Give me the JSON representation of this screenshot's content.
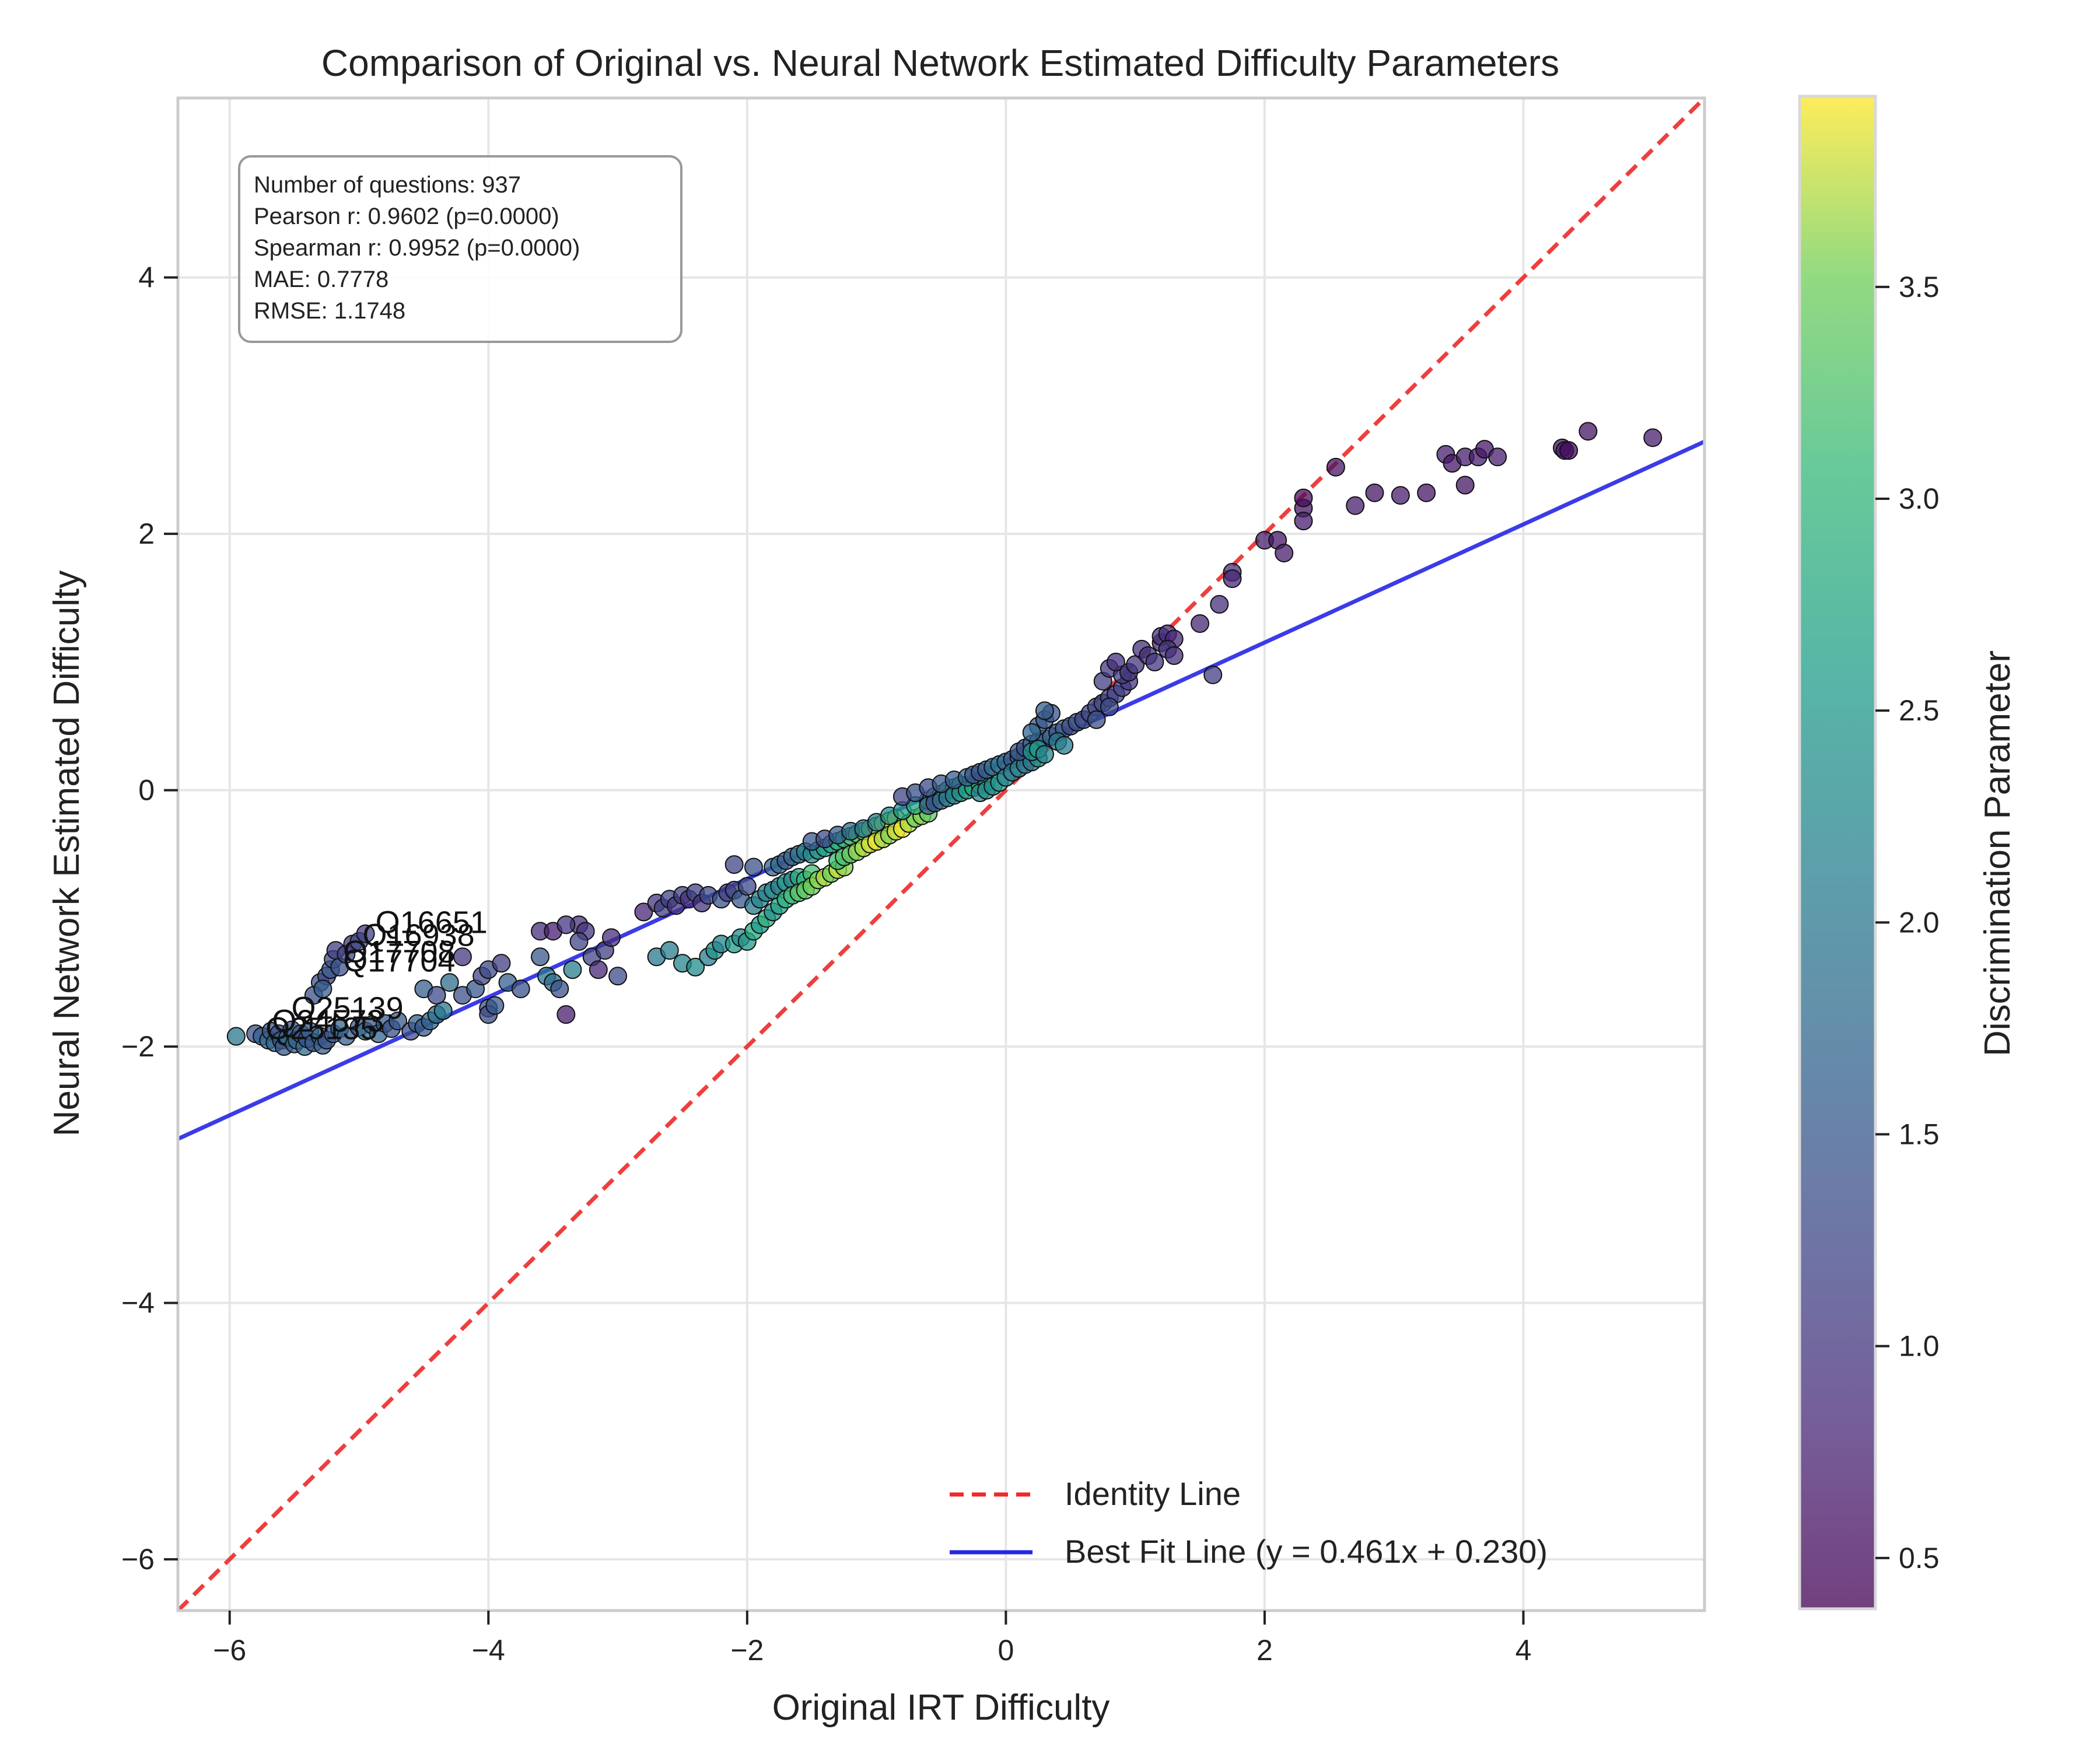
{
  "chart_data": {
    "type": "scatter",
    "title": "Comparison of Original vs. Neural Network Estimated Difficulty Parameters",
    "xlabel": "Original IRT Difficulty",
    "ylabel": "Neural Network Estimated Difficulty",
    "xlim": [
      -6.4,
      5.4
    ],
    "ylim": [
      -6.4,
      5.4
    ],
    "x_ticks": [
      -6,
      -4,
      -2,
      0,
      2,
      4
    ],
    "y_ticks": [
      -6,
      -4,
      -2,
      0,
      2,
      4
    ],
    "x_tick_labels": [
      "−6",
      "−4",
      "−2",
      "0",
      "2",
      "4"
    ],
    "y_tick_labels": [
      "−6",
      "−4",
      "−2",
      "0",
      "2",
      "4"
    ],
    "grid": true,
    "colorbar": {
      "label": "Discrimination Parameter",
      "range": [
        0.38,
        3.95
      ],
      "ticks": [
        0.5,
        1.0,
        1.5,
        2.0,
        2.5,
        3.0,
        3.5
      ],
      "tick_labels": [
        "0.5",
        "1.0",
        "1.5",
        "2.0",
        "2.5",
        "3.0",
        "3.5"
      ],
      "colormap": "viridis"
    },
    "stats_box": {
      "lines": [
        "Number of questions: 937",
        "Pearson r: 0.9602 (p=0.0000)",
        "Spearman r: 0.9952 (p=0.0000)",
        "MAE: 0.7778",
        "RMSE: 1.1748"
      ]
    },
    "legend": {
      "position": "lower-right",
      "entries": [
        {
          "label": "Identity Line",
          "color": "#ee2a2a",
          "style": "dashed"
        },
        {
          "label": "Best Fit Line (y = 0.461x + 0.230)",
          "color": "#2626e6",
          "style": "solid"
        }
      ]
    },
    "identity_line": {
      "slope": 1,
      "intercept": 0,
      "color": "#ee2a2a"
    },
    "fit_line": {
      "slope": 0.461,
      "intercept": 0.23,
      "color": "#2626e6"
    },
    "annotations": [
      {
        "label": "Q16651",
        "x": -4.9,
        "y": -1.05
      },
      {
        "label": "Q16938",
        "x": -5.0,
        "y": -1.15
      },
      {
        "label": "Q17708",
        "x": -5.15,
        "y": -1.28
      },
      {
        "label": "Q17704",
        "x": -5.15,
        "y": -1.35
      },
      {
        "label": "Q25139",
        "x": -5.55,
        "y": -1.72
      },
      {
        "label": "Q24573",
        "x": -5.7,
        "y": -1.82
      },
      {
        "label": "Q25135",
        "x": -5.75,
        "y": -1.88
      }
    ],
    "points": [
      [
        -5.95,
        -1.92,
        2.0
      ],
      [
        -5.8,
        -1.9,
        1.4
      ],
      [
        -5.75,
        -1.92,
        1.6
      ],
      [
        -5.7,
        -1.95,
        1.8
      ],
      [
        -5.68,
        -1.88,
        1.5
      ],
      [
        -5.65,
        -1.97,
        1.7
      ],
      [
        -5.62,
        -1.9,
        1.3
      ],
      [
        -5.6,
        -1.95,
        1.6
      ],
      [
        -5.58,
        -2.0,
        1.5
      ],
      [
        -5.55,
        -1.93,
        1.9
      ],
      [
        -5.52,
        -1.87,
        1.4
      ],
      [
        -5.5,
        -1.98,
        1.6
      ],
      [
        -5.48,
        -1.95,
        1.7
      ],
      [
        -5.45,
        -1.9,
        1.5
      ],
      [
        -5.42,
        -2.0,
        1.8
      ],
      [
        -5.4,
        -1.94,
        1.4
      ],
      [
        -5.38,
        -1.88,
        1.6
      ],
      [
        -5.35,
        -1.97,
        1.5
      ],
      [
        -5.3,
        -1.92,
        1.7
      ],
      [
        -5.28,
        -1.99,
        1.6
      ],
      [
        -5.25,
        -1.95,
        1.4
      ],
      [
        -5.2,
        -1.9,
        1.5
      ],
      [
        -5.15,
        -1.86,
        1.7
      ],
      [
        -5.1,
        -1.92,
        1.6
      ],
      [
        -5.0,
        -1.85,
        1.4
      ],
      [
        -4.95,
        -1.88,
        1.8
      ],
      [
        -4.9,
        -1.83,
        1.5
      ],
      [
        -4.85,
        -1.9,
        1.7
      ],
      [
        -4.8,
        -1.82,
        1.6
      ],
      [
        -4.75,
        -1.86,
        1.4
      ],
      [
        -4.7,
        -1.8,
        1.5
      ],
      [
        -4.6,
        -1.88,
        1.3
      ],
      [
        -4.55,
        -1.82,
        1.6
      ],
      [
        -4.5,
        -1.85,
        1.5
      ],
      [
        -4.45,
        -1.8,
        1.7
      ],
      [
        -4.4,
        -1.75,
        1.9
      ],
      [
        -4.35,
        -1.72,
        2.0
      ],
      [
        -4.0,
        -1.7,
        1.4
      ],
      [
        -4.0,
        -1.75,
        1.3
      ],
      [
        -3.95,
        -1.68,
        1.5
      ],
      [
        -5.3,
        -1.5,
        1.4
      ],
      [
        -5.25,
        -1.45,
        1.2
      ],
      [
        -5.22,
        -1.4,
        1.5
      ],
      [
        -5.2,
        -1.32,
        1.3
      ],
      [
        -5.18,
        -1.25,
        1.1
      ],
      [
        -5.15,
        -1.38,
        1.4
      ],
      [
        -5.1,
        -1.28,
        1.2
      ],
      [
        -5.05,
        -1.2,
        1.0
      ],
      [
        -5.0,
        -1.18,
        1.3
      ],
      [
        -4.95,
        -1.12,
        1.1
      ],
      [
        -5.35,
        -1.6,
        1.4
      ],
      [
        -5.28,
        -1.55,
        1.6
      ],
      [
        -4.5,
        -1.55,
        1.6
      ],
      [
        -4.4,
        -1.6,
        1.3
      ],
      [
        -4.3,
        -1.5,
        1.8
      ],
      [
        -4.2,
        -1.6,
        1.4
      ],
      [
        -4.1,
        -1.55,
        1.5
      ],
      [
        -4.05,
        -1.45,
        1.2
      ],
      [
        -4.0,
        -1.4,
        1.3
      ],
      [
        -3.9,
        -1.35,
        1.1
      ],
      [
        -3.85,
        -1.5,
        1.6
      ],
      [
        -3.75,
        -1.55,
        1.4
      ],
      [
        -3.6,
        -1.3,
        1.5
      ],
      [
        -3.55,
        -1.45,
        2.0
      ],
      [
        -3.5,
        -1.5,
        1.8
      ],
      [
        -3.45,
        -1.55,
        1.4
      ],
      [
        -3.4,
        -1.75,
        0.7
      ],
      [
        -3.35,
        -1.4,
        2.1
      ],
      [
        -3.3,
        -1.05,
        0.9
      ],
      [
        -3.25,
        -1.1,
        1.0
      ],
      [
        -3.2,
        -1.3,
        1.2
      ],
      [
        -3.15,
        -1.4,
        0.8
      ],
      [
        -3.1,
        -1.25,
        1.1
      ],
      [
        -3.05,
        -1.15,
        0.9
      ],
      [
        -3.0,
        -1.45,
        1.3
      ],
      [
        -3.6,
        -1.1,
        0.9
      ],
      [
        -3.5,
        -1.1,
        0.7
      ],
      [
        -3.4,
        -1.05,
        1.0
      ],
      [
        -3.3,
        -1.18,
        1.2
      ],
      [
        -4.2,
        -1.3,
        1.0
      ],
      [
        -2.8,
        -0.95,
        0.8
      ],
      [
        -2.7,
        -0.88,
        1.0
      ],
      [
        -2.65,
        -0.92,
        1.1
      ],
      [
        -2.6,
        -0.85,
        1.2
      ],
      [
        -2.55,
        -0.9,
        1.0
      ],
      [
        -2.5,
        -0.82,
        1.1
      ],
      [
        -2.45,
        -0.85,
        0.9
      ],
      [
        -2.4,
        -0.8,
        1.2
      ],
      [
        -2.35,
        -0.88,
        1.0
      ],
      [
        -2.3,
        -0.82,
        1.3
      ],
      [
        -2.2,
        -0.85,
        1.4
      ],
      [
        -2.15,
        -0.8,
        1.1
      ],
      [
        -2.1,
        -0.78,
        1.2
      ],
      [
        -2.05,
        -0.85,
        1.5
      ],
      [
        -2.0,
        -0.75,
        1.3
      ],
      [
        -2.7,
        -1.3,
        2.0
      ],
      [
        -2.6,
        -1.25,
        2.1
      ],
      [
        -2.5,
        -1.35,
        2.2
      ],
      [
        -2.4,
        -1.38,
        2.3
      ],
      [
        -2.3,
        -1.3,
        2.1
      ],
      [
        -2.25,
        -1.25,
        2.4
      ],
      [
        -2.2,
        -1.2,
        2.2
      ],
      [
        -2.1,
        -1.2,
        2.6
      ],
      [
        -2.05,
        -1.15,
        2.3
      ],
      [
        -2.0,
        -1.18,
        2.5
      ],
      [
        -1.95,
        -1.1,
        2.8
      ],
      [
        -1.9,
        -1.05,
        2.6
      ],
      [
        -1.85,
        -1.0,
        2.9
      ],
      [
        -1.8,
        -0.95,
        2.4
      ],
      [
        -1.75,
        -0.9,
        2.7
      ],
      [
        -1.95,
        -0.9,
        2.0
      ],
      [
        -1.9,
        -0.85,
        2.2
      ],
      [
        -1.85,
        -0.8,
        2.1
      ],
      [
        -1.8,
        -0.78,
        2.3
      ],
      [
        -1.75,
        -0.75,
        2.0
      ],
      [
        -1.7,
        -0.72,
        2.5
      ],
      [
        -1.65,
        -0.7,
        2.2
      ],
      [
        -1.6,
        -0.68,
        2.8
      ],
      [
        -1.55,
        -0.7,
        3.0
      ],
      [
        -1.5,
        -0.65,
        3.2
      ],
      [
        -1.7,
        -0.85,
        2.9
      ],
      [
        -1.65,
        -0.82,
        3.1
      ],
      [
        -1.6,
        -0.8,
        3.3
      ],
      [
        -1.55,
        -0.78,
        3.4
      ],
      [
        -1.5,
        -0.75,
        3.5
      ],
      [
        -1.45,
        -0.7,
        3.6
      ],
      [
        -1.4,
        -0.68,
        3.7
      ],
      [
        -1.35,
        -0.65,
        3.5
      ],
      [
        -1.3,
        -0.62,
        3.8
      ],
      [
        -1.25,
        -0.6,
        3.6
      ],
      [
        -1.8,
        -0.6,
        1.6
      ],
      [
        -1.75,
        -0.58,
        1.8
      ],
      [
        -1.7,
        -0.55,
        1.5
      ],
      [
        -1.65,
        -0.52,
        1.7
      ],
      [
        -1.6,
        -0.5,
        1.9
      ],
      [
        -1.55,
        -0.48,
        2.1
      ],
      [
        -1.5,
        -0.5,
        2.3
      ],
      [
        -1.45,
        -0.47,
        2.5
      ],
      [
        -1.4,
        -0.45,
        2.6
      ],
      [
        -1.35,
        -0.42,
        2.7
      ],
      [
        -1.3,
        -0.4,
        2.9
      ],
      [
        -1.25,
        -0.38,
        3.0
      ],
      [
        -1.2,
        -0.36,
        3.2
      ],
      [
        -1.15,
        -0.34,
        3.3
      ],
      [
        -1.1,
        -0.32,
        3.5
      ],
      [
        -1.05,
        -0.3,
        3.6
      ],
      [
        -1.0,
        -0.28,
        3.7
      ],
      [
        -0.95,
        -0.26,
        3.8
      ],
      [
        -0.9,
        -0.24,
        3.9
      ],
      [
        -0.85,
        -0.22,
        3.85
      ],
      [
        -1.3,
        -0.55,
        3.1
      ],
      [
        -1.25,
        -0.52,
        3.3
      ],
      [
        -1.2,
        -0.5,
        3.4
      ],
      [
        -1.15,
        -0.48,
        3.6
      ],
      [
        -1.1,
        -0.45,
        3.7
      ],
      [
        -1.05,
        -0.42,
        3.8
      ],
      [
        -1.0,
        -0.4,
        3.9
      ],
      [
        -0.95,
        -0.38,
        3.7
      ],
      [
        -0.9,
        -0.35,
        3.6
      ],
      [
        -0.85,
        -0.32,
        3.8
      ],
      [
        -0.8,
        -0.3,
        3.9
      ],
      [
        -0.75,
        -0.26,
        3.7
      ],
      [
        -0.7,
        -0.22,
        3.5
      ],
      [
        -0.65,
        -0.2,
        3.6
      ],
      [
        -0.6,
        -0.18,
        3.4
      ],
      [
        -1.5,
        -0.4,
        1.5
      ],
      [
        -1.4,
        -0.38,
        1.3
      ],
      [
        -1.3,
        -0.35,
        1.6
      ],
      [
        -1.2,
        -0.32,
        1.8
      ],
      [
        -1.1,
        -0.3,
        2.0
      ],
      [
        -1.0,
        -0.25,
        2.2
      ],
      [
        -0.9,
        -0.2,
        2.4
      ],
      [
        -0.8,
        -0.16,
        2.6
      ],
      [
        -0.7,
        -0.12,
        2.8
      ],
      [
        -0.6,
        -0.08,
        3.0
      ],
      [
        -0.55,
        -0.05,
        3.2
      ],
      [
        -0.5,
        -0.03,
        3.3
      ],
      [
        -0.45,
        0.0,
        3.1
      ],
      [
        -0.4,
        0.02,
        2.9
      ],
      [
        -0.35,
        0.04,
        2.7
      ],
      [
        -0.6,
        -0.12,
        1.6
      ],
      [
        -0.55,
        -0.1,
        1.4
      ],
      [
        -0.5,
        -0.08,
        1.8
      ],
      [
        -0.45,
        -0.06,
        2.0
      ],
      [
        -0.4,
        -0.04,
        2.2
      ],
      [
        -0.35,
        -0.02,
        2.4
      ],
      [
        -0.3,
        0.0,
        2.6
      ],
      [
        -0.25,
        0.02,
        2.8
      ],
      [
        -0.2,
        0.04,
        3.0
      ],
      [
        -0.15,
        0.06,
        2.6
      ],
      [
        -0.8,
        -0.05,
        1.2
      ],
      [
        -0.7,
        -0.02,
        1.4
      ],
      [
        -0.6,
        0.02,
        1.3
      ],
      [
        -0.5,
        0.05,
        1.5
      ],
      [
        -0.4,
        0.08,
        1.6
      ],
      [
        -0.3,
        0.1,
        1.7
      ],
      [
        -0.25,
        0.12,
        1.5
      ],
      [
        -0.2,
        0.14,
        1.4
      ],
      [
        -0.15,
        0.16,
        1.6
      ],
      [
        -0.1,
        0.18,
        1.8
      ],
      [
        -0.05,
        0.2,
        1.9
      ],
      [
        0.0,
        0.22,
        1.7
      ],
      [
        0.05,
        0.24,
        1.5
      ],
      [
        0.1,
        0.26,
        1.6
      ],
      [
        0.15,
        0.28,
        1.8
      ],
      [
        -0.2,
        -0.02,
        2.2
      ],
      [
        -0.15,
        0.0,
        2.4
      ],
      [
        -0.1,
        0.03,
        2.3
      ],
      [
        -0.05,
        0.06,
        2.5
      ],
      [
        0.0,
        0.1,
        2.2
      ],
      [
        0.05,
        0.14,
        2.0
      ],
      [
        0.1,
        0.17,
        2.1
      ],
      [
        0.15,
        0.2,
        1.9
      ],
      [
        0.2,
        0.22,
        2.0
      ],
      [
        0.25,
        0.25,
        2.3
      ],
      [
        0.1,
        0.3,
        1.5
      ],
      [
        0.15,
        0.33,
        1.4
      ],
      [
        0.2,
        0.36,
        1.6
      ],
      [
        0.25,
        0.38,
        1.5
      ],
      [
        0.3,
        0.4,
        1.7
      ],
      [
        0.35,
        0.42,
        1.6
      ],
      [
        0.4,
        0.45,
        1.4
      ],
      [
        0.45,
        0.48,
        1.5
      ],
      [
        0.5,
        0.5,
        1.3
      ],
      [
        0.55,
        0.53,
        1.4
      ],
      [
        0.25,
        0.5,
        1.6
      ],
      [
        0.3,
        0.55,
        1.5
      ],
      [
        0.35,
        0.6,
        1.4
      ],
      [
        0.2,
        0.45,
        1.7
      ],
      [
        0.3,
        0.62,
        1.6
      ],
      [
        0.2,
        0.3,
        2.4
      ],
      [
        0.25,
        0.32,
        2.6
      ],
      [
        0.3,
        0.28,
        2.2
      ],
      [
        0.4,
        0.38,
        2.0
      ],
      [
        0.45,
        0.35,
        2.1
      ],
      [
        0.6,
        0.55,
        1.3
      ],
      [
        0.65,
        0.6,
        1.2
      ],
      [
        0.7,
        0.65,
        1.3
      ],
      [
        0.75,
        0.68,
        1.2
      ],
      [
        0.8,
        0.72,
        1.1
      ],
      [
        0.85,
        0.75,
        1.2
      ],
      [
        0.9,
        0.8,
        1.1
      ],
      [
        0.95,
        0.85,
        1.0
      ],
      [
        0.7,
        0.55,
        1.4
      ],
      [
        0.8,
        0.65,
        1.3
      ],
      [
        0.75,
        0.85,
        1.1
      ],
      [
        0.8,
        0.95,
        1.0
      ],
      [
        0.9,
        0.9,
        1.1
      ],
      [
        0.85,
        1.0,
        0.9
      ],
      [
        0.95,
        0.92,
        1.0
      ],
      [
        1.0,
        0.98,
        1.0
      ],
      [
        1.05,
        1.1,
        0.9
      ],
      [
        1.1,
        1.05,
        1.0
      ],
      [
        1.15,
        1.0,
        1.0
      ],
      [
        1.2,
        1.15,
        0.8
      ],
      [
        1.2,
        1.2,
        1.0
      ],
      [
        1.25,
        1.22,
        0.9
      ],
      [
        1.3,
        1.18,
        0.8
      ],
      [
        1.25,
        1.1,
        1.0
      ],
      [
        1.3,
        1.05,
        0.9
      ],
      [
        1.5,
        1.3,
        0.8
      ],
      [
        1.65,
        1.45,
        0.9
      ],
      [
        1.6,
        0.9,
        1.1
      ],
      [
        1.75,
        1.7,
        0.9
      ],
      [
        1.75,
        1.65,
        0.8
      ],
      [
        2.0,
        1.95,
        0.7
      ],
      [
        2.1,
        1.95,
        0.6
      ],
      [
        2.15,
        1.85,
        0.7
      ],
      [
        2.3,
        2.2,
        0.6
      ],
      [
        2.3,
        2.1,
        0.7
      ],
      [
        2.3,
        2.28,
        0.5
      ],
      [
        2.55,
        2.52,
        0.6
      ],
      [
        2.7,
        2.22,
        0.7
      ],
      [
        2.85,
        2.32,
        0.6
      ],
      [
        3.05,
        2.3,
        0.7
      ],
      [
        3.25,
        2.32,
        0.6
      ],
      [
        3.4,
        2.62,
        0.7
      ],
      [
        3.45,
        2.55,
        0.6
      ],
      [
        3.55,
        2.6,
        0.7
      ],
      [
        3.55,
        2.38,
        0.6
      ],
      [
        3.65,
        2.6,
        0.7
      ],
      [
        3.7,
        2.66,
        0.6
      ],
      [
        3.8,
        2.6,
        0.7
      ],
      [
        4.3,
        2.67,
        0.6
      ],
      [
        4.32,
        2.65,
        0.7
      ],
      [
        4.35,
        2.65,
        0.5
      ],
      [
        4.5,
        2.8,
        0.6
      ],
      [
        5.0,
        2.75,
        0.7
      ],
      [
        -1.95,
        -0.6,
        1.4
      ],
      [
        -2.1,
        -0.58,
        1.2
      ]
    ]
  }
}
